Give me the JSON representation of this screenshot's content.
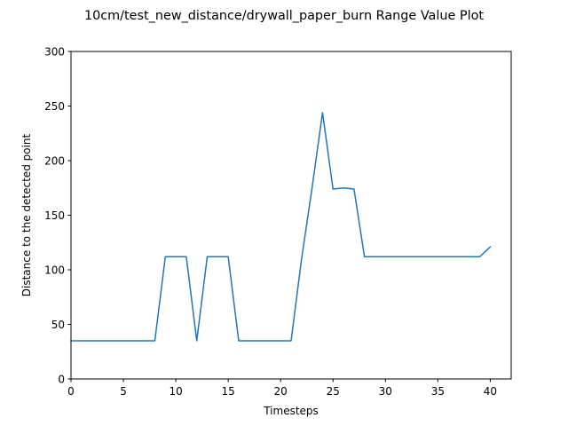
{
  "chart_data": {
    "type": "line",
    "title": "10cm/test_new_distance/drywall_paper_burn Range Value Plot",
    "xlabel": "Timesteps",
    "ylabel": "Distance to the detected point",
    "xlim": [
      0,
      42
    ],
    "ylim": [
      0,
      300
    ],
    "xticks": [
      0,
      5,
      10,
      15,
      20,
      25,
      30,
      35,
      40
    ],
    "xtick_labels": [
      "0",
      "5",
      "10",
      "15",
      "20",
      "25",
      "30",
      "35",
      "40"
    ],
    "yticks": [
      0,
      50,
      100,
      150,
      200,
      250,
      300
    ],
    "ytick_labels": [
      "0",
      "50",
      "100",
      "150",
      "200",
      "250",
      "300"
    ],
    "grid": false,
    "series": [
      {
        "color": "#1f77b4",
        "x": [
          0,
          1,
          2,
          3,
          4,
          5,
          6,
          7,
          8,
          9,
          10,
          11,
          12,
          13,
          14,
          15,
          16,
          17,
          18,
          19,
          20,
          21,
          22,
          23,
          24,
          25,
          26,
          27,
          28,
          29,
          30,
          31,
          32,
          33,
          34,
          35,
          36,
          37,
          38,
          39,
          40
        ],
        "y": [
          35,
          35,
          35,
          35,
          35,
          35,
          35,
          35,
          35,
          112,
          112,
          112,
          35,
          112,
          112,
          112,
          35,
          35,
          35,
          35,
          35,
          35,
          110,
          175,
          244,
          174,
          175,
          174,
          112,
          112,
          112,
          112,
          112,
          112,
          112,
          112,
          112,
          112,
          112,
          112,
          121
        ]
      }
    ]
  }
}
